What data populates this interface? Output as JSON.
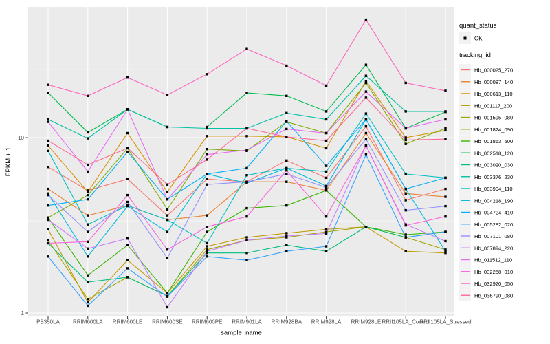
{
  "figure": {
    "y_axis_title": "FPKM + 1",
    "x_axis_title": "sample_name",
    "y_tick_labels": [
      "1",
      "10"
    ],
    "legend": {
      "quant_status_title": "quant_status",
      "quant_status_ok_label": "OK",
      "tracking_id_title": "tracking_id"
    },
    "colors": {
      "panel_background": "#EBEBEB",
      "gridline": "#FFFFFF",
      "tick_text": "#4D4D4D",
      "axis_title_text": "#000000",
      "point": "#000000",
      "legend_key_background": "#F2F2F2"
    }
  },
  "chart_data": {
    "type": "line",
    "title": "",
    "xlabel": "sample_name",
    "ylabel": "FPKM + 1",
    "y_scale": "log10",
    "ylim": [
      1,
      50
    ],
    "y_major_breaks": [
      1,
      10
    ],
    "y_minor_gridlines": [
      3.35,
      24.5
    ],
    "grid": true,
    "legend_position": "right",
    "point_shape": "filled-square",
    "quant_status": "OK",
    "categories": [
      "PB350LA",
      "RRIM600LA",
      "RRIM600LE",
      "RRIM600SE",
      "RRIM600PE",
      "RRIM901LA",
      "RRIM928BA",
      "RRIM928LA",
      "RRIM928LE",
      "RRII105LA_Control",
      "RRII105LA_Stressed"
    ],
    "series": [
      {
        "name": "Hb_000025_270",
        "color": "#F8766D",
        "values": [
          6.8,
          5.0,
          5.8,
          3.6,
          5.8,
          5.6,
          7.4,
          5.9,
          11.6,
          4.4,
          5.1
        ]
      },
      {
        "name": "Hb_000087_140",
        "color": "#EA8331",
        "values": [
          5.1,
          3.6,
          4.1,
          3.4,
          3.6,
          5.6,
          5.6,
          5.0,
          10.6,
          4.8,
          4.6
        ]
      },
      {
        "name": "Hb_000613_110",
        "color": "#D89000",
        "values": [
          9.0,
          4.9,
          10.6,
          4.9,
          10.2,
          10.2,
          10.1,
          8.7,
          21.0,
          10.0,
          11.0
        ]
      },
      {
        "name": "Hb_001117_200",
        "color": "#C09B00",
        "values": [
          3.0,
          1.15,
          2.0,
          1.3,
          2.4,
          2.7,
          2.85,
          3.0,
          3.1,
          2.25,
          2.2
        ]
      },
      {
        "name": "Hb_001595_080",
        "color": "#A3A500",
        "values": [
          2.6,
          1.2,
          1.6,
          1.25,
          2.3,
          2.6,
          2.7,
          2.9,
          3.1,
          2.7,
          2.3
        ]
      },
      {
        "name": "Hb_001824_090",
        "color": "#7CAE00",
        "values": [
          3.5,
          4.7,
          8.7,
          3.9,
          8.6,
          8.4,
          12.3,
          10.6,
          20.5,
          9.2,
          11.3
        ]
      },
      {
        "name": "Hb_001863_500",
        "color": "#39B600",
        "values": [
          3.5,
          1.64,
          2.44,
          1.3,
          2.9,
          3.96,
          4.1,
          5.0,
          3.1,
          2.8,
          2.9
        ]
      },
      {
        "name": "Hb_002518_120",
        "color": "#00BB4E",
        "values": [
          18.0,
          10.7,
          14.5,
          11.5,
          11.5,
          18.0,
          17.3,
          14.1,
          26.0,
          11.3,
          14.0
        ]
      },
      {
        "name": "Hb_003020_030",
        "color": "#00BF7D",
        "values": [
          2.5,
          1.5,
          1.6,
          1.25,
          2.2,
          2.2,
          2.44,
          2.25,
          3.1,
          2.7,
          2.9
        ]
      },
      {
        "name": "Hb_003376_230",
        "color": "#00C1A3",
        "values": [
          12.7,
          9.9,
          14.5,
          11.5,
          11.3,
          11.3,
          13.8,
          12.7,
          22.5,
          14.1,
          14.1
        ]
      },
      {
        "name": "Hb_003994_110",
        "color": "#00BFC4",
        "values": [
          8.4,
          3.2,
          4.1,
          3.4,
          2.5,
          6.1,
          6.7,
          6.4,
          13.7,
          6.2,
          5.9
        ]
      },
      {
        "name": "Hb_004218_190",
        "color": "#00BAE0",
        "values": [
          4.8,
          2.1,
          4.07,
          2.9,
          6.2,
          5.5,
          6.7,
          5.3,
          12.7,
          5.1,
          2.25
        ]
      },
      {
        "name": "Hb_004724_410",
        "color": "#00B0F6",
        "values": [
          4.1,
          4.45,
          8.3,
          4.45,
          6.2,
          6.7,
          12.4,
          6.9,
          12.7,
          5.1,
          5.9
        ]
      },
      {
        "name": "Hb_005282_020",
        "color": "#35A2FF",
        "values": [
          2.1,
          1.1,
          1.8,
          1.24,
          2.1,
          2.0,
          2.25,
          2.4,
          8.0,
          2.7,
          2.9
        ]
      },
      {
        "name": "Hb_007101_080",
        "color": "#9590FF",
        "values": [
          4.7,
          2.9,
          4.3,
          2.06,
          5.4,
          5.6,
          6.2,
          5.2,
          9.8,
          3.85,
          4.07
        ]
      },
      {
        "name": "Hb_007894_220",
        "color": "#C77CFF",
        "values": [
          3.4,
          2.33,
          2.66,
          1.08,
          2.25,
          2.6,
          2.75,
          2.84,
          9.0,
          3.2,
          2.57
        ]
      },
      {
        "name": "Hb_011512_110",
        "color": "#E76BF3",
        "values": [
          12.3,
          6.4,
          14.5,
          4.45,
          8.0,
          8.5,
          11.2,
          10.6,
          18.3,
          11.3,
          12.7
        ]
      },
      {
        "name": "Hb_032258_010",
        "color": "#FA62DB",
        "values": [
          2.5,
          2.55,
          4.7,
          2.3,
          3.1,
          3.55,
          6.5,
          3.55,
          9.0,
          3.16,
          3.55
        ]
      },
      {
        "name": "Hb_032920_050",
        "color": "#FF62BC",
        "values": [
          20.0,
          17.3,
          22.0,
          17.5,
          23.0,
          32.0,
          25.7,
          19.8,
          47.0,
          20.5,
          18.5
        ]
      },
      {
        "name": "Hb_036790_080",
        "color": "#FF6A98",
        "values": [
          9.6,
          7.0,
          8.7,
          5.4,
          7.5,
          11.3,
          10.1,
          9.6,
          16.9,
          9.7,
          9.8
        ]
      }
    ]
  }
}
